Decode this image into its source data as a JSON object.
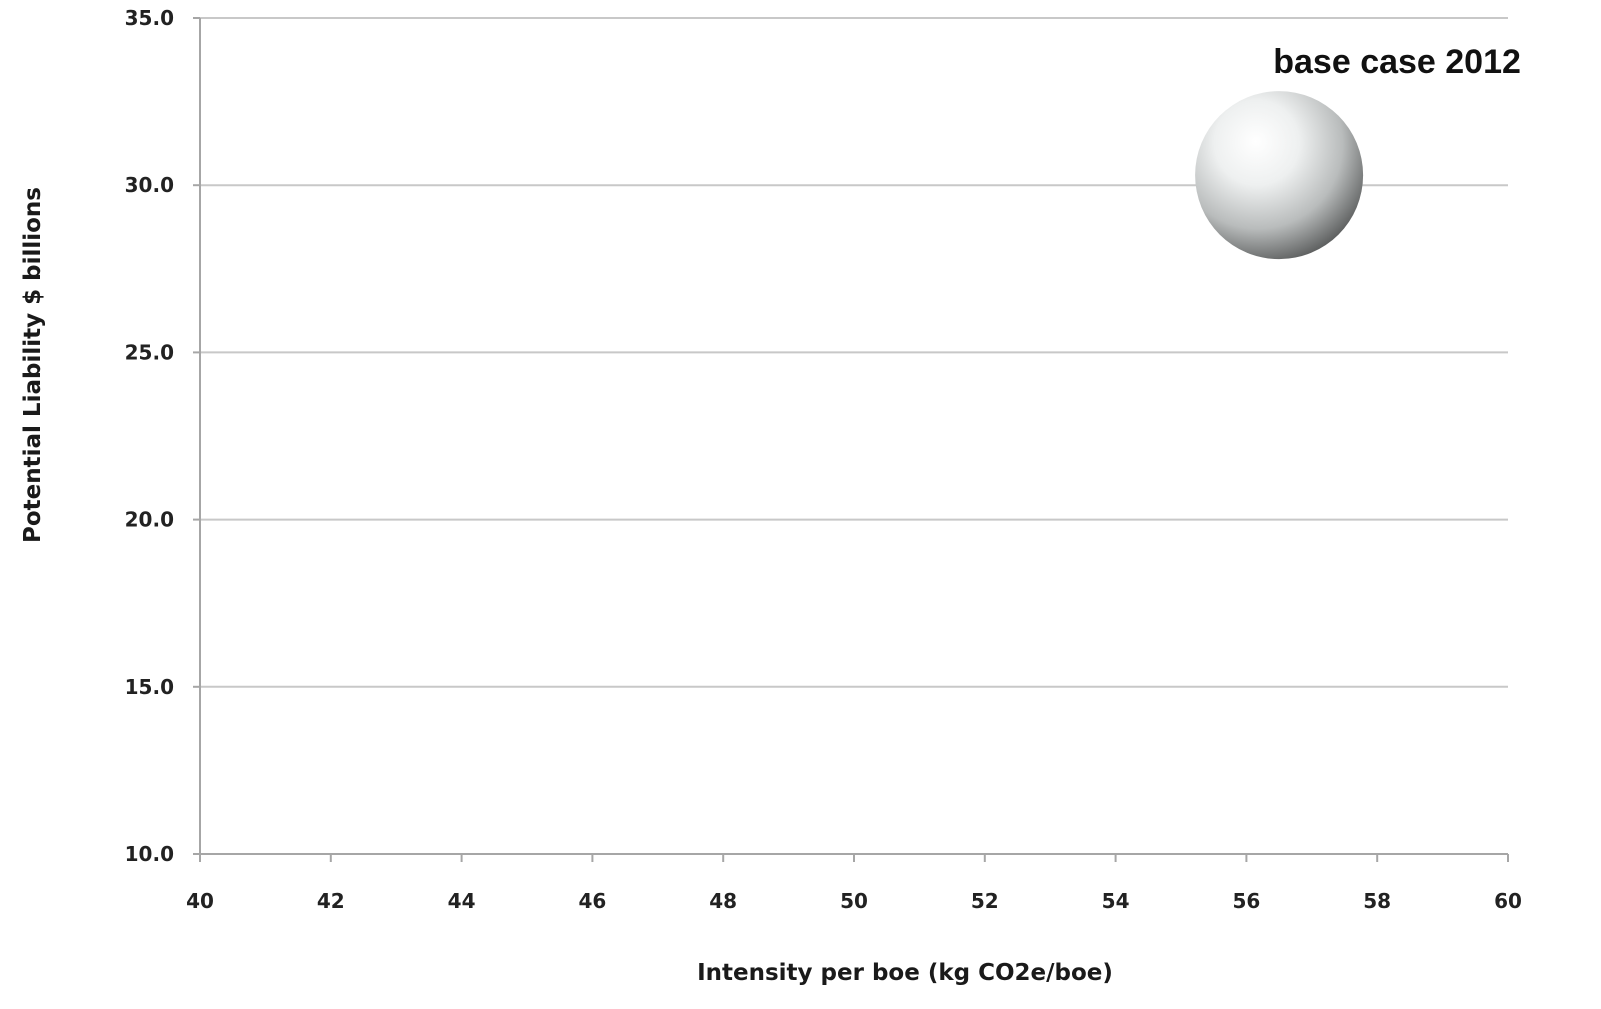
{
  "chart_data": {
    "type": "scatter",
    "xlabel": "Intensity per boe (kg CO2e/boe)",
    "ylabel": "Potential Liability $ billions",
    "xlim": [
      40,
      60
    ],
    "ylim": [
      10,
      35
    ],
    "x_ticks": [
      40,
      42,
      44,
      46,
      48,
      50,
      52,
      54,
      56,
      58,
      60
    ],
    "y_ticks": [
      "10.0",
      "15.0",
      "20.0",
      "25.0",
      "30.0",
      "35.0"
    ],
    "grid": "horizontal",
    "legend": "none",
    "points": [
      {
        "label": "base case 2012",
        "x": 56.5,
        "y": 30.3
      }
    ],
    "colors": {
      "gridline": "#c8c8c8",
      "axis": "#a6a6a6",
      "bubble_light": "#ffffff",
      "bubble_dark": "#5a5a5a"
    }
  }
}
